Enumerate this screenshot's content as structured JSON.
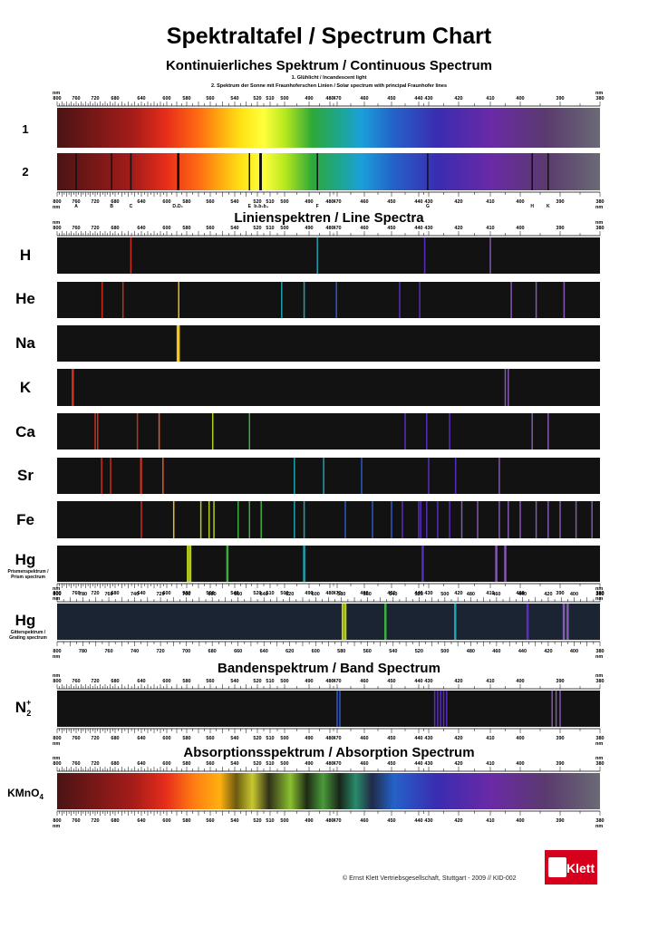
{
  "title": "Spektraltafel / Spectrum Chart",
  "sections": {
    "continuous": "Kontinuierliches Spektrum / Continuous Spectrum",
    "line": "Linienspektren / Line Spectra",
    "band": "Bandenspektrum / Band Spectrum",
    "absorption": "Absorptionsspektrum / Absorption Spectrum"
  },
  "captions": {
    "c1": "1. Glühlicht / Incandescent light",
    "c2": "2. Spektrum der Sonne mit Fraunhoferschen Linien / Solar spectrum with principal Fraunhofer lines"
  },
  "unit": "nm",
  "scale_ticks": [
    "800",
    "760",
    "720",
    "680",
    "640",
    "600",
    "580",
    "560",
    "540",
    "520",
    "510",
    "500",
    "490",
    "480",
    "470",
    "460",
    "450",
    "440",
    "430",
    "420",
    "410",
    "400",
    "390",
    "380"
  ],
  "grating_ticks": [
    "800",
    "780",
    "760",
    "740",
    "720",
    "700",
    "680",
    "660",
    "640",
    "620",
    "600",
    "580",
    "560",
    "540",
    "520",
    "500",
    "480",
    "460",
    "440",
    "420",
    "400",
    "380"
  ],
  "fraunhofer_letters": [
    {
      "t": "A",
      "nm": 760
    },
    {
      "t": "B",
      "nm": 687
    },
    {
      "t": "C",
      "nm": 656
    },
    {
      "t": "D₁D₂",
      "nm": 589
    },
    {
      "t": "E",
      "nm": 527
    },
    {
      "t": "b₁b₂b₄",
      "nm": 517
    },
    {
      "t": "F",
      "nm": 486
    },
    {
      "t": "G",
      "nm": 431
    },
    {
      "t": "H",
      "nm": 397
    },
    {
      "t": "K",
      "nm": 393
    }
  ],
  "labels": {
    "row1": "1",
    "row2": "2",
    "H": "H",
    "He": "He",
    "Na": "Na",
    "K": "K",
    "Ca": "Ca",
    "Sr": "Sr",
    "Fe": "Fe",
    "Hg": "Hg",
    "Hg2": "Hg",
    "N2": "N",
    "N2_sup": "+",
    "N2_sub": "2",
    "KMnO4": "KMnO",
    "KMnO4_sub": "4",
    "prism_de": "Prismenspektrum /",
    "prism_en": "Prism spectrum",
    "grating_de": "Gitterspektrum /",
    "grating_en": "Grating spectrum"
  },
  "lines": {
    "fraunhofer": [
      760,
      687,
      656,
      589,
      588,
      527,
      518,
      517,
      486,
      431,
      397,
      393
    ],
    "H": [
      656,
      486,
      434,
      410
    ],
    "He": [
      706,
      668,
      588,
      502,
      492,
      471,
      447,
      439,
      403,
      396,
      389
    ],
    "Na": [
      589,
      588
    ],
    "K": [
      768,
      766,
      405,
      404
    ],
    "Ca": [
      720,
      715,
      646,
      612,
      558,
      527,
      445,
      432,
      423,
      397,
      393
    ],
    "Sr": [
      707,
      689,
      641,
      640,
      606,
      496,
      483,
      461,
      430,
      421,
      407
    ],
    "Fe": [
      640,
      593,
      568,
      561,
      557,
      537,
      527,
      517,
      496,
      492,
      467,
      457,
      450,
      446,
      440,
      438,
      432,
      427,
      423,
      419,
      414,
      407,
      404,
      400,
      396,
      393,
      390,
      386,
      382
    ],
    "Hg_prism": [
      579,
      577,
      546,
      492,
      436,
      408,
      405
    ],
    "Hg_grating": [
      579,
      577,
      546,
      492,
      436,
      408,
      405
    ],
    "N2": [
      470,
      469,
      428,
      427,
      426,
      425,
      424,
      392,
      391,
      390
    ]
  },
  "copyright": "© Ernst Klett Vertriebsgesellschaft, Stuttgart - 2009 // KID-002",
  "logo_text": "Klett",
  "colors": {
    "background": "#ffffff",
    "panel_dark": "#121212",
    "brand": "#d6001c"
  }
}
